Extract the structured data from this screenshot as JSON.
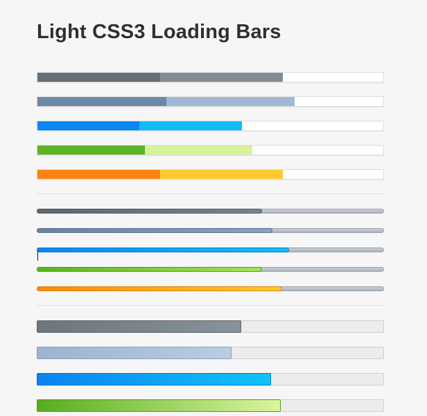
{
  "page": {
    "title": "Light CSS3 Loading Bars"
  },
  "flat_bars": [
    {
      "name": "gray",
      "progress": 0.706,
      "split": 0.353,
      "dark": "#687076",
      "light": "#838c92"
    },
    {
      "name": "blue",
      "progress": 0.741,
      "split": 0.371,
      "dark": "#6c87a8",
      "light": "#a1b8d3"
    },
    {
      "name": "azure",
      "progress": 0.589,
      "split": 0.294,
      "dark": "#0b87f4",
      "light": "#12baf6"
    },
    {
      "name": "green",
      "progress": 0.619,
      "split": 0.309,
      "dark": "#5db326",
      "light": "#d6f39b"
    },
    {
      "name": "orange",
      "progress": 0.706,
      "split": 0.353,
      "dark": "#fb8311",
      "light": "#fec92f"
    }
  ],
  "thin_bars": [
    {
      "name": "gray",
      "progress": 0.649,
      "from": "#5f676d",
      "to": "#79838a",
      "border": "#545c62"
    },
    {
      "name": "blue",
      "progress": 0.679,
      "from": "#6a819d",
      "to": "#8aa2bf",
      "border": "#5d7390"
    },
    {
      "name": "azure",
      "progress": 0.727,
      "from": "#0a86ef",
      "to": "#10c0f8",
      "border": "#0a74d2"
    },
    {
      "name": "green",
      "progress": 0.649,
      "from": "#59b41c",
      "to": "#a6e25a",
      "border": "#4d9c19"
    },
    {
      "name": "orange",
      "progress": 0.706,
      "from": "#f98a0a",
      "to": "#fdc92c",
      "border": "#e07e08"
    }
  ],
  "thick_bars": [
    {
      "name": "gray",
      "progress": 0.589,
      "from": "#6d767c",
      "to": "#88929a",
      "border": "#5e666b"
    },
    {
      "name": "blue",
      "progress": 0.561,
      "from": "#9db3cf",
      "to": "#b9cde3",
      "border": "#8aa0bd"
    },
    {
      "name": "azure",
      "progress": 0.675,
      "from": "#0c83ef",
      "to": "#11c3f8",
      "border": "#0a72d4"
    },
    {
      "name": "green",
      "progress": 0.703,
      "from": "#56ad1e",
      "to": "#dbf59e",
      "border": "#4f9a1b"
    }
  ]
}
